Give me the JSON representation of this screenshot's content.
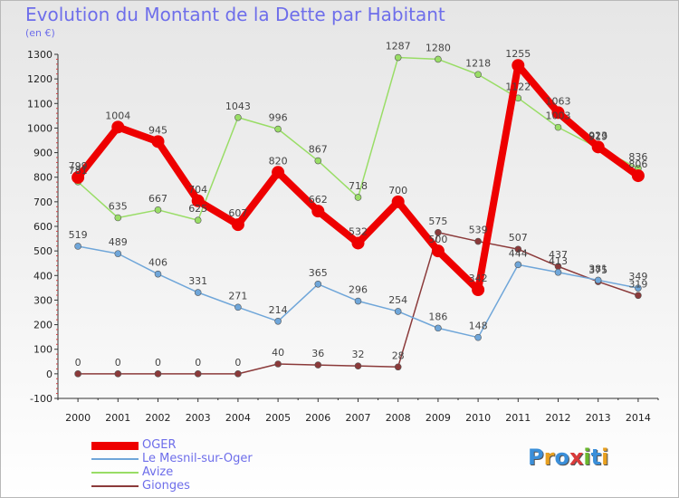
{
  "title": "Evolution du Montant de la Dette par Habitant",
  "unit": "(en €)",
  "logo": {
    "text": "Proxiti",
    "letters": [
      {
        "ch": "P",
        "color": "#3b8fd9"
      },
      {
        "ch": "r",
        "color": "#e8a020"
      },
      {
        "ch": "o",
        "color": "#3b8fd9"
      },
      {
        "ch": "x",
        "color": "#d93b3b"
      },
      {
        "ch": "i",
        "color": "#6ab82e"
      },
      {
        "ch": "t",
        "color": "#3b8fd9"
      },
      {
        "ch": "i",
        "color": "#e8a020"
      }
    ]
  },
  "chart_data": {
    "type": "line",
    "x": [
      "2000",
      "2001",
      "2002",
      "2003",
      "2004",
      "2005",
      "2006",
      "2007",
      "2008",
      "2009",
      "2010",
      "2011",
      "2012",
      "2013",
      "2014"
    ],
    "ylim": [
      -100,
      1300
    ],
    "yticks": [
      -100,
      0,
      100,
      200,
      300,
      400,
      500,
      600,
      700,
      800,
      900,
      1000,
      1100,
      1200,
      1300
    ],
    "grid": false,
    "legend_position": "bottom-left",
    "series": [
      {
        "name": "OGER",
        "color": "#ee0000",
        "width": 8,
        "marker": 7,
        "labels": [
          "799",
          "1004",
          "945",
          "704",
          "607",
          "820",
          "662",
          "532",
          "700",
          "500",
          "342",
          "1255",
          "1063",
          "923",
          "806"
        ],
        "values": [
          799,
          1004,
          945,
          704,
          607,
          820,
          662,
          532,
          700,
          500,
          342,
          1255,
          1063,
          923,
          806
        ]
      },
      {
        "name": "Le Mesnil-sur-Oger",
        "color": "#6fa6d9",
        "width": 1.5,
        "marker": 3.5,
        "labels": [
          "519",
          "489",
          "406",
          "331",
          "271",
          "214",
          "365",
          "296",
          "254",
          "186",
          "148",
          "444",
          "413",
          "381",
          "349"
        ],
        "values": [
          519,
          489,
          406,
          331,
          271,
          214,
          365,
          296,
          254,
          186,
          148,
          444,
          413,
          381,
          349
        ]
      },
      {
        "name": "Avize",
        "color": "#99dd66",
        "width": 1.5,
        "marker": 3.5,
        "labels": [
          "781",
          "635",
          "667",
          "625",
          "1043",
          "996",
          "867",
          "718",
          "1287",
          "1280",
          "1218",
          "1122",
          "1003",
          "919",
          "836"
        ],
        "values": [
          781,
          635,
          667,
          625,
          1043,
          996,
          867,
          718,
          1287,
          1280,
          1218,
          1122,
          1003,
          919,
          836
        ]
      },
      {
        "name": "Gionges",
        "color": "#8b3a3a",
        "width": 1.5,
        "marker": 3.5,
        "labels": [
          "0",
          "0",
          "0",
          "0",
          "0",
          "40",
          "36",
          "32",
          "28",
          "575",
          "539",
          "507",
          "437",
          "375",
          "319"
        ],
        "values": [
          0,
          0,
          0,
          0,
          0,
          40,
          36,
          32,
          28,
          575,
          539,
          507,
          437,
          375,
          319
        ]
      }
    ]
  }
}
